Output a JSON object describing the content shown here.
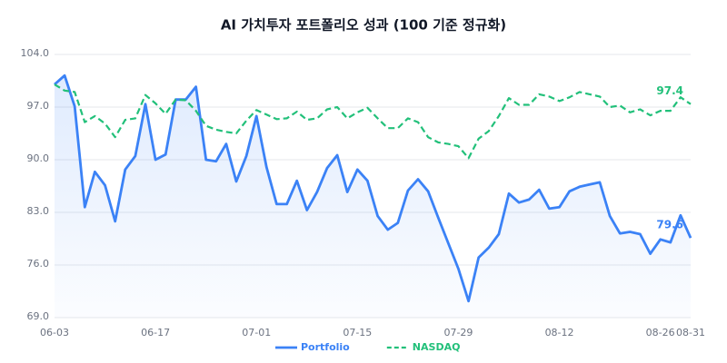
{
  "chart_data": {
    "type": "line",
    "title": "AI 가치투자 포트폴리오 성과 (100 기준 정규화)",
    "categories": [
      "06-03",
      null,
      null,
      null,
      null,
      null,
      null,
      null,
      null,
      null,
      "06-17",
      null,
      null,
      null,
      null,
      null,
      null,
      null,
      null,
      null,
      "07-01",
      null,
      null,
      null,
      null,
      null,
      null,
      null,
      null,
      null,
      "07-15",
      null,
      null,
      null,
      null,
      null,
      null,
      null,
      null,
      null,
      "07-29",
      null,
      null,
      null,
      null,
      null,
      null,
      null,
      null,
      null,
      "08-12",
      null,
      null,
      null,
      null,
      null,
      null,
      null,
      null,
      null,
      "08-26",
      null,
      null,
      "08-31"
    ],
    "series": [
      {
        "name": "Portfolio",
        "color": "#3b82f6",
        "dashed": false,
        "area": true,
        "values": [
          100.0,
          101.2,
          97.1,
          83.7,
          88.4,
          86.6,
          81.8,
          88.7,
          90.5,
          97.4,
          90.0,
          90.7,
          98.0,
          98.0,
          99.7,
          90.0,
          89.8,
          92.1,
          87.1,
          90.5,
          95.8,
          89.0,
          84.1,
          84.1,
          87.2,
          83.3,
          85.7,
          88.9,
          90.6,
          85.7,
          88.7,
          87.2,
          82.5,
          80.7,
          81.6,
          85.9,
          87.4,
          85.8,
          82.3,
          78.9,
          75.5,
          71.2,
          77.0,
          78.3,
          80.1,
          85.5,
          84.3,
          84.7,
          86.0,
          83.5,
          83.7,
          85.8,
          86.4,
          86.7,
          87.0,
          82.5,
          80.2,
          80.4,
          80.1,
          77.5,
          79.4,
          79.0,
          82.6,
          79.6
        ]
      },
      {
        "name": "NASDAQ",
        "color": "#22c07a",
        "dashed": true,
        "area": false,
        "values": [
          100.0,
          99.2,
          99.0,
          95.0,
          95.8,
          94.8,
          93.0,
          95.3,
          95.5,
          98.6,
          97.5,
          96.1,
          98.0,
          97.9,
          96.5,
          94.5,
          94.0,
          93.7,
          93.5,
          95.2,
          96.6,
          96.0,
          95.4,
          95.5,
          96.4,
          95.3,
          95.5,
          96.7,
          97.0,
          95.5,
          96.3,
          96.9,
          95.5,
          94.2,
          94.2,
          95.5,
          95.0,
          93.0,
          92.3,
          92.1,
          91.8,
          90.2,
          92.8,
          93.8,
          95.8,
          98.2,
          97.3,
          97.3,
          98.7,
          98.4,
          97.8,
          98.3,
          99.0,
          98.7,
          98.4,
          97.0,
          97.2,
          96.3,
          96.7,
          95.9,
          96.5,
          96.5,
          98.3,
          97.4
        ]
      }
    ],
    "last_value_labels": true,
    "ylim": [
      69,
      104
    ],
    "yticks": [
      {
        "value": 69,
        "label": "69.0"
      },
      {
        "value": 76,
        "label": "76.0"
      },
      {
        "value": 83,
        "label": "83.0"
      },
      {
        "value": 90,
        "label": "90.0"
      },
      {
        "value": 97,
        "label": "97.0"
      },
      {
        "value": 104,
        "label": "104.0"
      }
    ],
    "grid": true,
    "legend": "bottom"
  }
}
